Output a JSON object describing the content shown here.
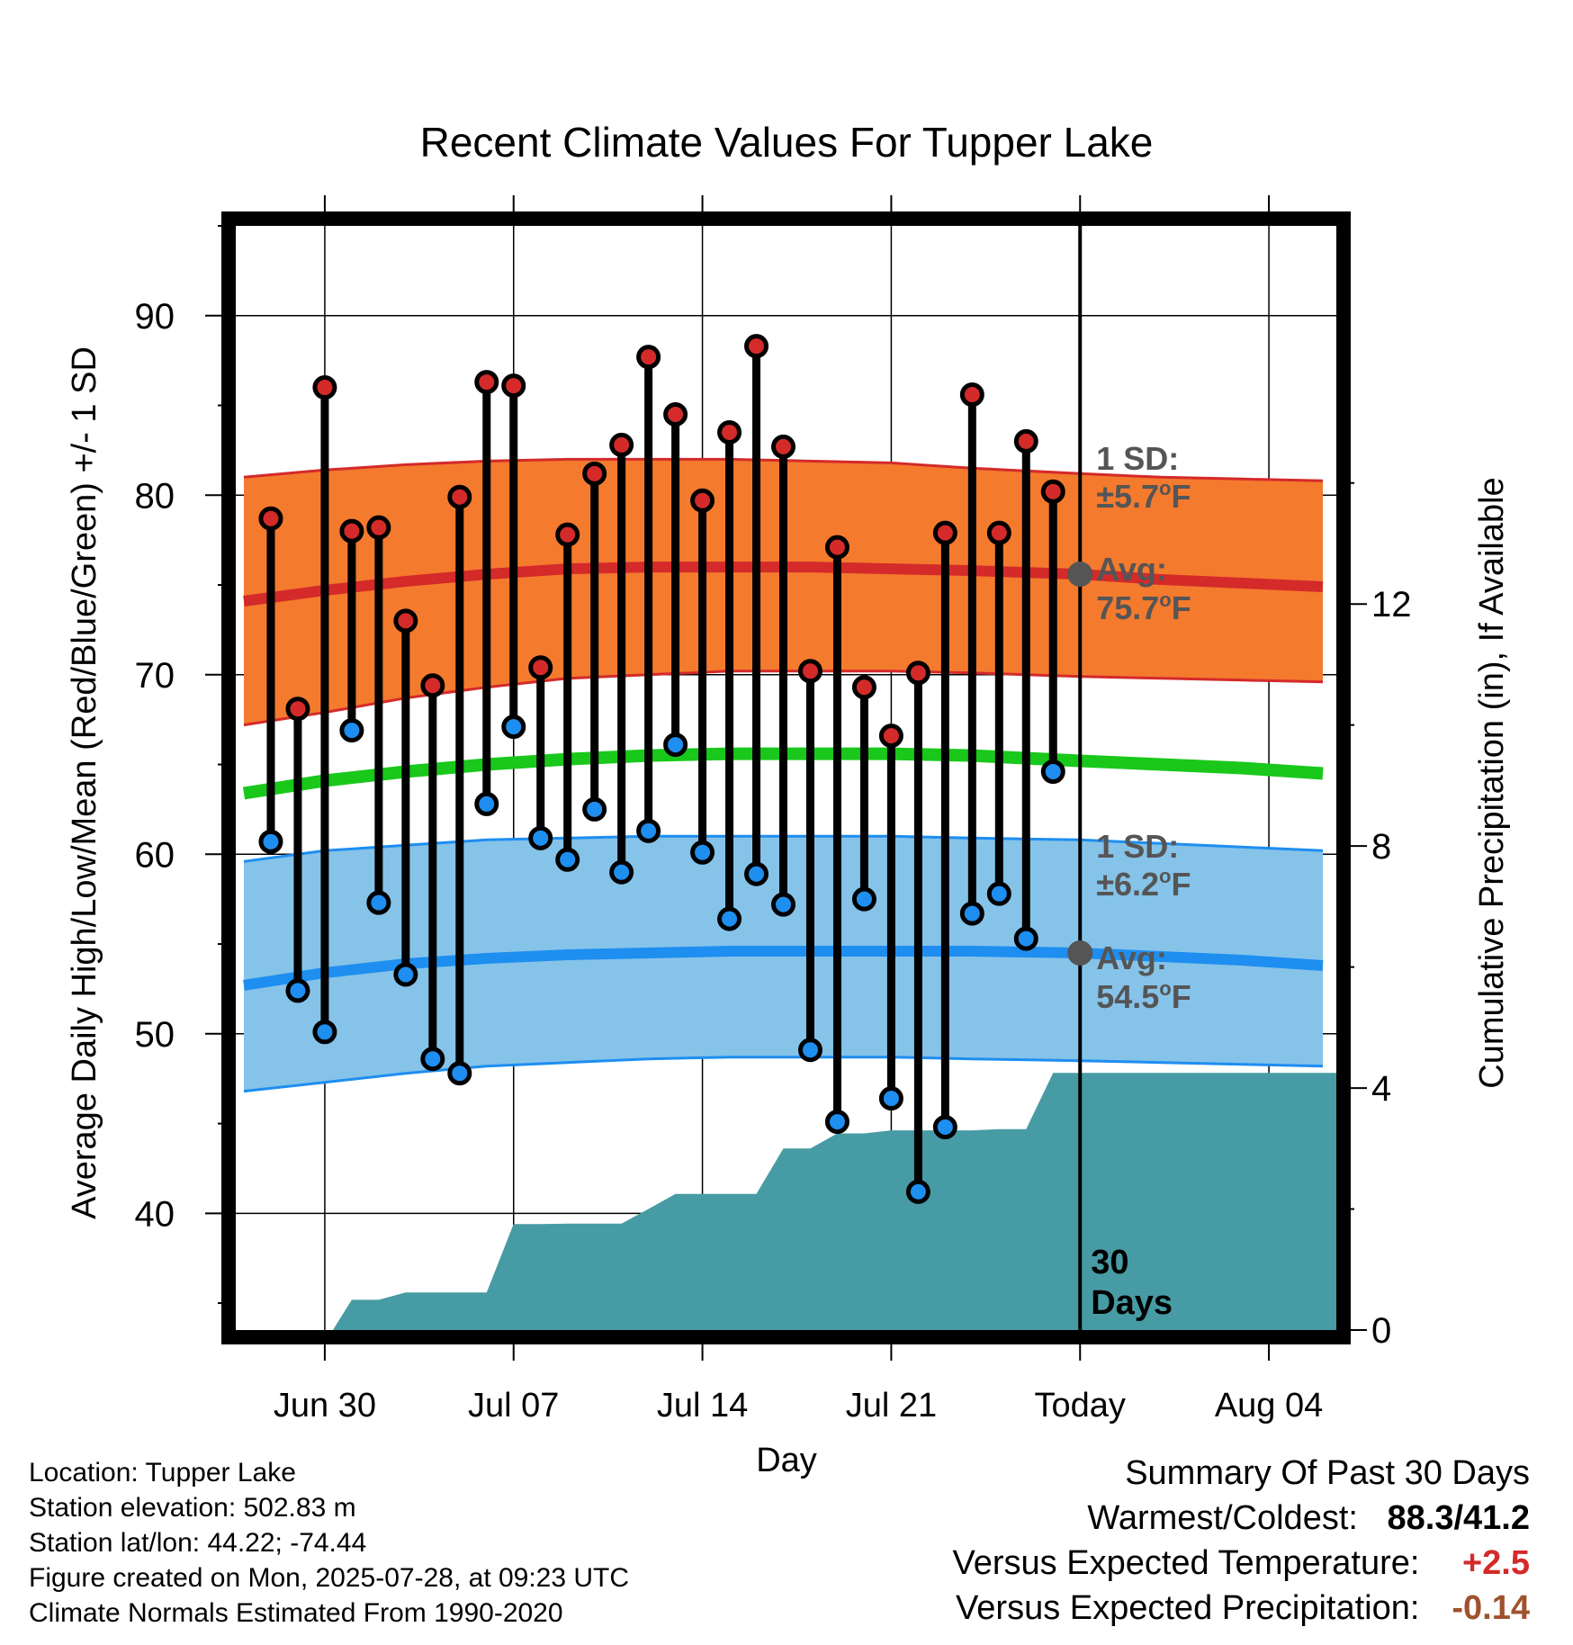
{
  "chart_data": {
    "type": "line",
    "title": "Recent Climate Values For Tupper Lake",
    "xlabel": "Day",
    "ylabel": "Average Daily High/Low/Mean (Red/Blue/Green) +/- 1 SD",
    "ylabel_right": "Cumulative Precipitation (in), If Available",
    "ylim": [
      33.5,
      95
    ],
    "ylim_right": [
      0,
      18.25
    ],
    "xlim": [
      -3.3,
      37.5
    ],
    "x_ticks": [
      {
        "x": 0,
        "label": "Jun 30"
      },
      {
        "x": 7,
        "label": "Jul 07"
      },
      {
        "x": 14,
        "label": "Jul 14"
      },
      {
        "x": 21,
        "label": "Jul 21"
      },
      {
        "x": 28,
        "label": "Today"
      },
      {
        "x": 35,
        "label": "Aug 04"
      }
    ],
    "y_ticks": [
      40,
      50,
      60,
      70,
      80,
      90
    ],
    "y_ticks_right": [
      0,
      4,
      8,
      12
    ],
    "today_x": 28,
    "today_label": "30\nDays",
    "grid": true,
    "colors": {
      "high_band": "#f47a2e",
      "high_line": "#d42a2a",
      "low_band": "#86c3e9",
      "low_line": "#1e8ef0",
      "mean_line": "#19c81b",
      "precip": "#479ba4",
      "high_dot": "#d42a2a",
      "low_dot": "#1e8ef0",
      "annotation": "#555555",
      "warm": "#d42a2a",
      "precip_text": "#a0522d"
    },
    "normal_x": [
      -3,
      0,
      3,
      6,
      9,
      12,
      15,
      18,
      21,
      24,
      28,
      31,
      34,
      37
    ],
    "normal_high": {
      "avg": [
        74.1,
        74.7,
        75.2,
        75.6,
        75.9,
        76.0,
        76.0,
        76.0,
        75.9,
        75.8,
        75.6,
        75.3,
        75.1,
        74.9
      ],
      "upper": [
        81.0,
        81.4,
        81.7,
        81.9,
        82.0,
        82.0,
        82.0,
        81.9,
        81.8,
        81.5,
        81.2,
        81.0,
        80.9,
        80.8
      ],
      "lower": [
        67.2,
        67.9,
        68.7,
        69.3,
        69.8,
        70.0,
        70.2,
        70.2,
        70.2,
        70.1,
        69.9,
        69.8,
        69.7,
        69.6
      ]
    },
    "normal_low": {
      "avg": [
        52.7,
        53.4,
        53.9,
        54.2,
        54.4,
        54.5,
        54.6,
        54.6,
        54.6,
        54.6,
        54.5,
        54.3,
        54.1,
        53.8
      ],
      "upper": [
        59.6,
        60.2,
        60.5,
        60.8,
        60.9,
        61.0,
        61.0,
        61.0,
        61.0,
        60.9,
        60.8,
        60.6,
        60.4,
        60.2
      ],
      "lower": [
        46.8,
        47.3,
        47.8,
        48.2,
        48.4,
        48.6,
        48.7,
        48.7,
        48.7,
        48.6,
        48.5,
        48.4,
        48.3,
        48.2
      ]
    },
    "normal_mean": [
      63.4,
      64.1,
      64.6,
      65.0,
      65.3,
      65.5,
      65.6,
      65.6,
      65.6,
      65.5,
      65.2,
      65.0,
      64.8,
      64.5
    ],
    "daily_x": [
      -2,
      -1,
      0,
      1,
      2,
      3,
      4,
      5,
      6,
      7,
      8,
      9,
      10,
      11,
      12,
      13,
      14,
      15,
      16,
      17,
      18,
      19,
      20,
      21,
      22,
      23,
      24,
      25,
      26,
      27
    ],
    "daily_high": [
      78.7,
      68.1,
      86.0,
      78.0,
      78.2,
      73.0,
      69.4,
      79.9,
      86.3,
      86.1,
      70.4,
      77.8,
      81.2,
      82.8,
      87.7,
      84.5,
      79.7,
      83.5,
      88.3,
      82.7,
      70.2,
      77.1,
      69.3,
      66.6,
      70.1,
      77.9,
      85.6,
      77.9,
      83.0,
      80.2
    ],
    "daily_low": [
      60.7,
      52.4,
      50.1,
      66.9,
      57.3,
      53.3,
      48.6,
      47.8,
      62.8,
      67.1,
      60.9,
      59.7,
      62.5,
      59.0,
      61.3,
      66.1,
      60.1,
      56.4,
      58.9,
      57.2,
      49.1,
      45.1,
      57.5,
      46.4,
      41.2,
      44.8,
      56.7,
      57.8,
      55.3,
      64.6
    ],
    "precip_x": [
      -3.3,
      0.3,
      1.0,
      2.0,
      3.0,
      6.0,
      7.0,
      8.0,
      9.0,
      11.0,
      12.0,
      13.0,
      14.0,
      16.0,
      17.0,
      18.0,
      19.0,
      20.0,
      21.0,
      22.0,
      23.0,
      24.0,
      25.0,
      26.0,
      27.0,
      28.0,
      37.5
    ],
    "precip_values": [
      0,
      0,
      0.5,
      0.5,
      0.62,
      0.62,
      1.75,
      1.75,
      1.76,
      1.76,
      2.0,
      2.25,
      2.25,
      2.25,
      3.0,
      3.0,
      3.25,
      3.25,
      3.3,
      3.3,
      3.3,
      3.3,
      3.32,
      3.32,
      4.25,
      4.25,
      4.25
    ],
    "annotations": {
      "high_sd_label": "1 SD:",
      "high_sd_value": "±5.7",
      "high_avg_label": "Avg:",
      "high_avg_value": "75.7",
      "low_sd_label": "1 SD:",
      "low_sd_value": "±6.2",
      "low_avg_label": "Avg:",
      "low_avg_value": "54.5",
      "degree_symbol": "o",
      "unit": "F"
    }
  },
  "footer": {
    "location": "Location: Tupper Lake",
    "elevation": "Station elevation: 502.83 m",
    "latlon": "Station lat/lon: 44.22; -74.44",
    "created": "Figure created on Mon, 2025-07-28, at 09:23 UTC",
    "normals": "Climate Normals Estimated From 1990-2020"
  },
  "summary": {
    "title": "Summary Of Past 30 Days",
    "warm_cold_label": "Warmest/Coldest:",
    "warm_cold_value": "88.3/41.2",
    "temp_label": "Versus Expected Temperature:",
    "temp_value": "+2.5",
    "precip_label": "Versus Expected Precipitation:",
    "precip_value": "-0.14"
  }
}
